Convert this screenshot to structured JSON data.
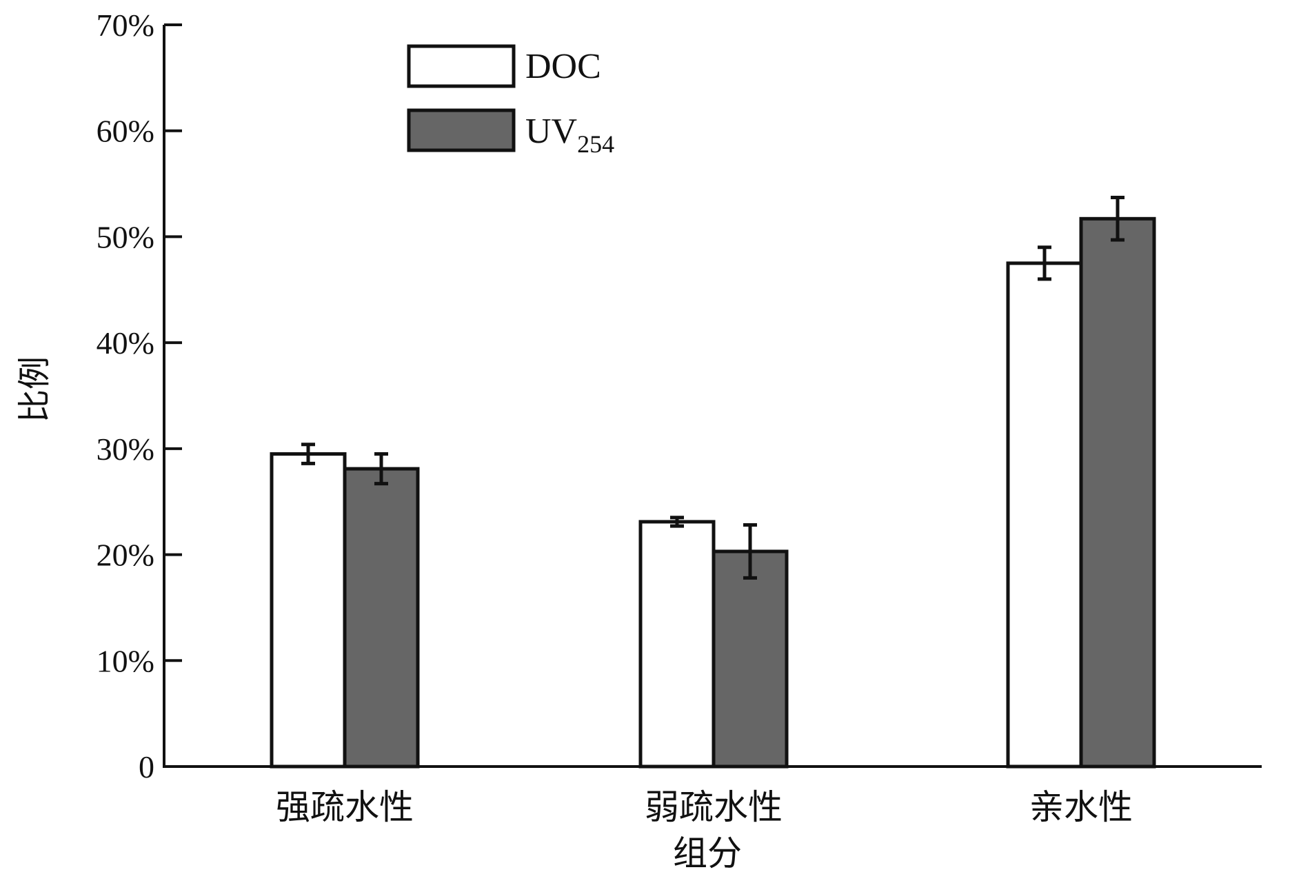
{
  "chart_data": {
    "type": "bar",
    "ylabel": "比例",
    "xlabel": "组分",
    "categories": [
      "强疏水性",
      "弱疏水性",
      "亲水性"
    ],
    "ylim": [
      0,
      70
    ],
    "yticks": [
      0,
      10,
      20,
      30,
      40,
      50,
      60,
      70
    ],
    "ytick_labels": [
      "0",
      "10%",
      "20%",
      "30%",
      "40%",
      "50%",
      "60%",
      "70%"
    ],
    "legend_position": "top-left",
    "grid": false,
    "error_bars": true,
    "series": [
      {
        "name": "DOC",
        "legend_main": "DOC",
        "legend_sub": "",
        "color": "#ffffff",
        "values": [
          29.5,
          23.1,
          47.5
        ],
        "errors": [
          0.9,
          0.4,
          1.5
        ]
      },
      {
        "name": "UV254",
        "legend_main": "UV",
        "legend_sub": "254",
        "color": "#666666",
        "values": [
          28.1,
          20.3,
          51.7
        ],
        "errors": [
          1.4,
          2.5,
          2.0
        ]
      }
    ]
  }
}
